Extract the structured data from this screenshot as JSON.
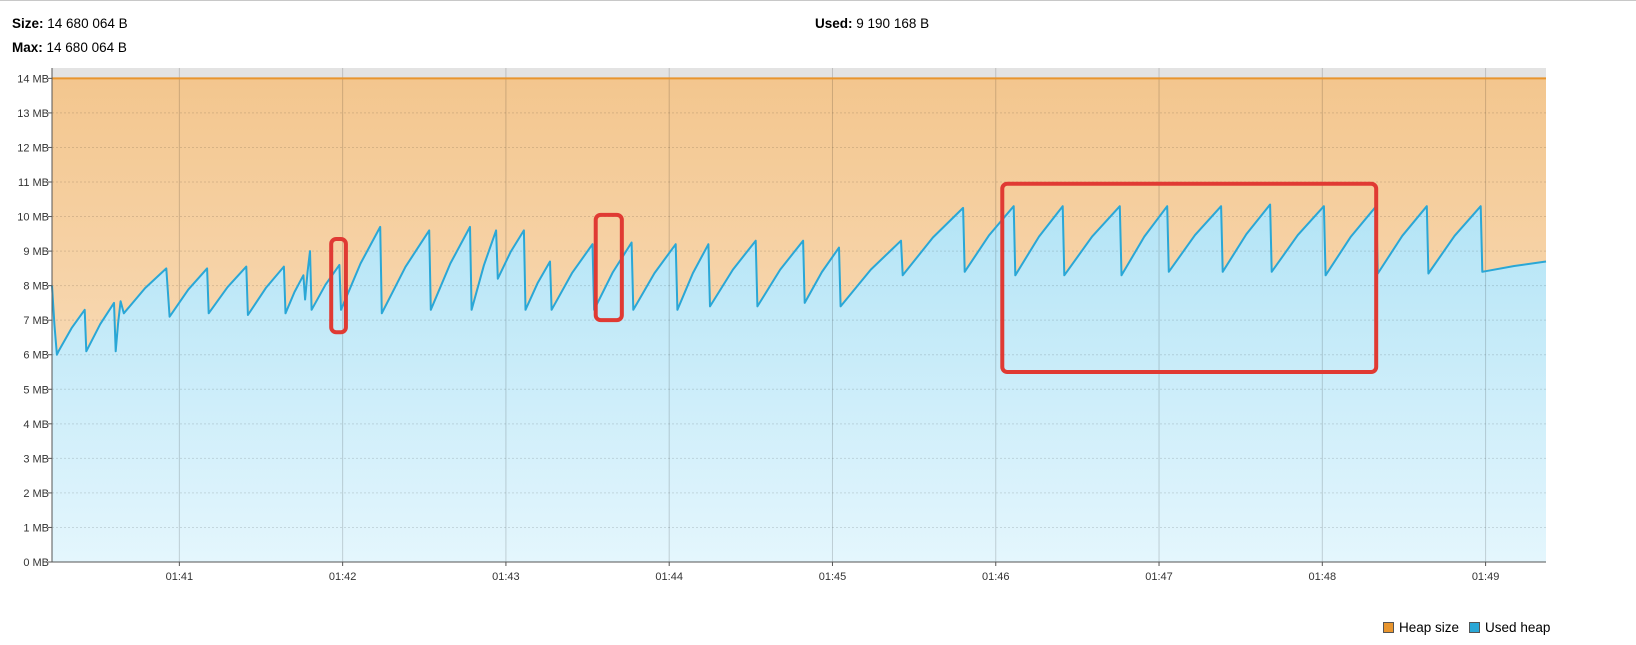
{
  "stats": {
    "size_label": "Size:",
    "size_value": "14 680 064 B",
    "max_label": "Max:",
    "max_value": "14 680 064 B",
    "used_label": "Used:",
    "used_value": "9 190 168 B"
  },
  "colors": {
    "heap_size": "#e8952e",
    "used_heap": "#2aa7d6",
    "heap_fill_top": "#f3c68e",
    "used_fill_top": "#b3e4f6",
    "annotation": "#e03a33"
  },
  "chart_data": {
    "type": "area",
    "title": "",
    "xlabel": "",
    "ylabel": "",
    "y_ticks": [
      "0 MB",
      "1 MB",
      "2 MB",
      "3 MB",
      "4 MB",
      "5 MB",
      "6 MB",
      "7 MB",
      "8 MB",
      "9 MB",
      "10 MB",
      "11 MB",
      "12 MB",
      "13 MB",
      "14 MB"
    ],
    "ylim": [
      0,
      14.3
    ],
    "xlim": [
      100.22,
      109.37
    ],
    "x_unit": "minutes (mm:ss axis)",
    "x_ticks": [
      {
        "value": 101,
        "label": "01:41"
      },
      {
        "value": 102,
        "label": "01:42"
      },
      {
        "value": 103,
        "label": "01:43"
      },
      {
        "value": 104,
        "label": "01:44"
      },
      {
        "value": 105,
        "label": "01:45"
      },
      {
        "value": 106,
        "label": "01:46"
      },
      {
        "value": 107,
        "label": "01:47"
      },
      {
        "value": 108,
        "label": "01:48"
      },
      {
        "value": 109,
        "label": "01:49"
      }
    ],
    "grid": true,
    "legend_position": "bottom-right",
    "series": [
      {
        "name": "Heap size",
        "constant": 14.0
      },
      {
        "name": "Used heap",
        "cycles": [
          [
            100.22,
            100.25,
            8.0,
            6.0
          ],
          [
            100.26,
            100.42,
            6.1,
            7.3
          ],
          [
            100.43,
            100.6,
            6.1,
            7.5
          ],
          [
            100.61,
            100.64,
            6.1,
            7.55
          ],
          [
            100.66,
            100.92,
            7.2,
            8.5
          ],
          [
            100.94,
            101.17,
            7.1,
            8.5
          ],
          [
            101.18,
            101.41,
            7.2,
            8.55
          ],
          [
            101.42,
            101.64,
            7.15,
            8.55
          ],
          [
            101.65,
            101.76,
            7.2,
            8.3
          ],
          [
            101.77,
            101.8,
            7.6,
            9.0
          ],
          [
            101.81,
            101.98,
            7.3,
            8.6
          ],
          [
            101.99,
            102.23,
            7.3,
            9.7
          ],
          [
            102.24,
            102.53,
            7.2,
            9.6
          ],
          [
            102.54,
            102.78,
            7.3,
            9.7
          ],
          [
            102.79,
            102.94,
            7.3,
            9.6
          ],
          [
            102.95,
            103.11,
            8.2,
            9.6
          ],
          [
            103.12,
            103.27,
            7.3,
            8.7
          ],
          [
            103.28,
            103.53,
            7.3,
            9.2
          ],
          [
            103.54,
            103.77,
            7.3,
            9.25
          ],
          [
            103.78,
            104.04,
            7.3,
            9.2
          ],
          [
            104.05,
            104.24,
            7.3,
            9.2
          ],
          [
            104.25,
            104.53,
            7.4,
            9.3
          ],
          [
            104.54,
            104.82,
            7.4,
            9.3
          ],
          [
            104.83,
            105.04,
            7.5,
            9.1
          ],
          [
            105.05,
            105.42,
            7.4,
            9.3
          ],
          [
            105.43,
            105.8,
            8.3,
            10.25
          ],
          [
            105.81,
            106.11,
            8.4,
            10.3
          ],
          [
            106.12,
            106.41,
            8.3,
            10.3
          ],
          [
            106.42,
            106.76,
            8.3,
            10.3
          ],
          [
            106.77,
            107.05,
            8.3,
            10.3
          ],
          [
            107.06,
            107.38,
            8.4,
            10.3
          ],
          [
            107.39,
            107.68,
            8.4,
            10.35
          ],
          [
            107.69,
            108.01,
            8.4,
            10.3
          ],
          [
            108.02,
            108.33,
            8.3,
            10.3
          ],
          [
            108.34,
            108.64,
            8.35,
            10.3
          ],
          [
            108.65,
            108.97,
            8.35,
            10.3
          ],
          [
            108.98,
            109.37,
            8.4,
            8.7
          ]
        ]
      }
    ],
    "annotations": [
      {
        "type": "rect",
        "x0": 101.93,
        "x1": 102.02,
        "y0": 6.65,
        "y1": 9.35
      },
      {
        "type": "rect",
        "x0": 103.55,
        "x1": 103.71,
        "y0": 7.0,
        "y1": 10.05
      },
      {
        "type": "rect",
        "x0": 106.04,
        "x1": 108.33,
        "y0": 5.5,
        "y1": 10.95
      }
    ]
  },
  "legend": {
    "heap_size": "Heap size",
    "used_heap": "Used heap"
  }
}
